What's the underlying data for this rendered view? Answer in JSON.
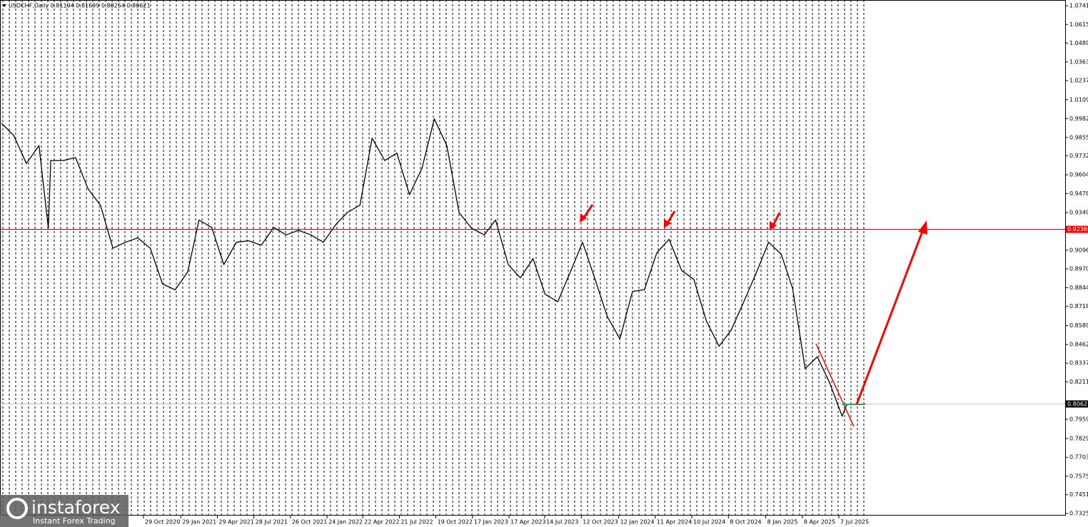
{
  "chart_data": {
    "type": "line",
    "title": "USDCHF,Daily  0.81194 0.81699 0.80254 0.80621",
    "color": "#000000",
    "x": [
      "2019-11-15",
      "2019-12-15",
      "2020-01-15",
      "2020-02-15",
      "2020-03-09",
      "2020-03-15",
      "2020-04-15",
      "2020-05-15",
      "2020-06-15",
      "2020-07-15",
      "2020-08-15",
      "2020-09-15",
      "2020-10-15",
      "2020-11-15",
      "2020-12-15",
      "2021-01-15",
      "2021-02-15",
      "2021-03-15",
      "2021-04-15",
      "2021-05-15",
      "2021-06-15",
      "2021-07-15",
      "2021-08-15",
      "2021-09-15",
      "2021-10-15",
      "2021-11-15",
      "2021-12-15",
      "2022-01-15",
      "2022-02-15",
      "2022-03-15",
      "2022-04-15",
      "2022-05-15",
      "2022-06-15",
      "2022-07-15",
      "2022-08-15",
      "2022-09-15",
      "2022-10-15",
      "2022-11-15",
      "2022-12-15",
      "2023-01-15",
      "2023-02-15",
      "2023-03-15",
      "2023-04-15",
      "2023-05-15",
      "2023-06-15",
      "2023-07-15",
      "2023-08-15",
      "2023-09-15",
      "2023-10-15",
      "2023-11-15",
      "2023-12-15",
      "2024-01-15",
      "2024-02-15",
      "2024-03-15",
      "2024-04-15",
      "2024-05-15",
      "2024-06-15",
      "2024-07-15",
      "2024-08-15",
      "2024-09-15",
      "2024-10-15",
      "2024-11-15",
      "2024-12-15",
      "2025-01-15",
      "2025-02-15",
      "2025-03-15",
      "2025-04-15",
      "2025-05-15",
      "2025-06-15",
      "2025-07-15",
      "2025-07-27"
    ],
    "values": [
      0.995,
      0.9868,
      0.968,
      0.98,
      0.9244,
      0.97,
      0.97,
      0.972,
      0.9508,
      0.94,
      0.911,
      0.915,
      0.918,
      0.911,
      0.887,
      0.883,
      0.895,
      0.93,
      0.925,
      0.9,
      0.915,
      0.916,
      0.913,
      0.925,
      0.92,
      0.923,
      0.92,
      0.915,
      0.927,
      0.935,
      0.94,
      0.985,
      0.97,
      0.975,
      0.947,
      0.965,
      0.998,
      0.98,
      0.935,
      0.9244,
      0.92,
      0.93,
      0.9,
      0.891,
      0.904,
      0.88,
      0.875,
      0.895,
      0.915,
      0.89,
      0.865,
      0.85,
      0.882,
      0.883,
      0.908,
      0.917,
      0.896,
      0.89,
      0.862,
      0.845,
      0.856,
      0.875,
      0.894,
      0.915,
      0.907,
      0.884,
      0.83,
      0.838,
      0.82,
      0.798,
      0.8062
    ],
    "xlim": [
      "2019-11-11",
      "2027-01-15"
    ],
    "xticks": [
      {
        "value": "2020-10-29",
        "label": "29 Oct 2020"
      },
      {
        "value": "2021-01-29",
        "label": "29 Jan 2021"
      },
      {
        "value": "2021-04-29",
        "label": "29 Apr 2021"
      },
      {
        "value": "2021-07-28",
        "label": "28 Jul 2021"
      },
      {
        "value": "2021-10-26",
        "label": "26 Oct 2021"
      },
      {
        "value": "2022-01-24",
        "label": "24 Jan 2022"
      },
      {
        "value": "2022-04-22",
        "label": "22 Apr 2022"
      },
      {
        "value": "2022-07-21",
        "label": "21 Jul 2022"
      },
      {
        "value": "2022-10-19",
        "label": "19 Oct 2022"
      },
      {
        "value": "2023-01-17",
        "label": "17 Jan 2023"
      },
      {
        "value": "2023-04-17",
        "label": "17 Apr 2023"
      },
      {
        "value": "2023-07-14",
        "label": "14 Jul 2023"
      },
      {
        "value": "2023-10-12",
        "label": "12 Oct 2023"
      },
      {
        "value": "2024-01-12",
        "label": "12 Jan 2024"
      },
      {
        "value": "2024-04-11",
        "label": "11 Apr 2024"
      },
      {
        "value": "2024-07-10",
        "label": "10 Jul 2024"
      },
      {
        "value": "2024-10-08",
        "label": "8 Oct 2024"
      },
      {
        "value": "2025-01-08",
        "label": "8 Jan 2025"
      },
      {
        "value": "2025-04-08",
        "label": "8 Apr 2025"
      },
      {
        "value": "2025-07-07",
        "label": "7 Jul 2025"
      }
    ],
    "ylim": [
      0.73111,
      1.07799
    ],
    "yticks": [
      1.07415,
      1.06155,
      1.04895,
      1.03635,
      1.02375,
      {
        "value": 1.0109,
        "label": "1.01090"
      },
      {
        "value": 0.9982,
        "label": "0.99820"
      },
      {
        "value": 0.9855,
        "label": "0.98550"
      },
      {
        "value": 0.9732,
        "label": "0.97320"
      },
      {
        "value": 0.9604,
        "label": "0.96040"
      },
      {
        "value": 0.9478,
        "label": "0.94780"
      },
      0.93495,
      0.90965,
      0.89705,
      0.88445,
      0.87185,
      {
        "value": 0.8589,
        "label": "0.85890"
      },
      {
        "value": 0.8462,
        "label": "0.84620"
      },
      {
        "value": 0.8337,
        "label": "0.83370"
      },
      {
        "value": 0.8211,
        "label": "0.82110"
      },
      {
        "value": 0.7959,
        "label": "0.79590"
      },
      0.78295,
      0.77035,
      {
        "value": 0.7575,
        "label": "0.75750"
      },
      0.74515,
      0.73255
    ],
    "levels": [
      {
        "value": 0.92369,
        "color": "#ff0000"
      }
    ],
    "current_price": 0.80621,
    "watermark": {
      "brand": "instaforex",
      "slogan": "Instant Forex Trading"
    }
  }
}
